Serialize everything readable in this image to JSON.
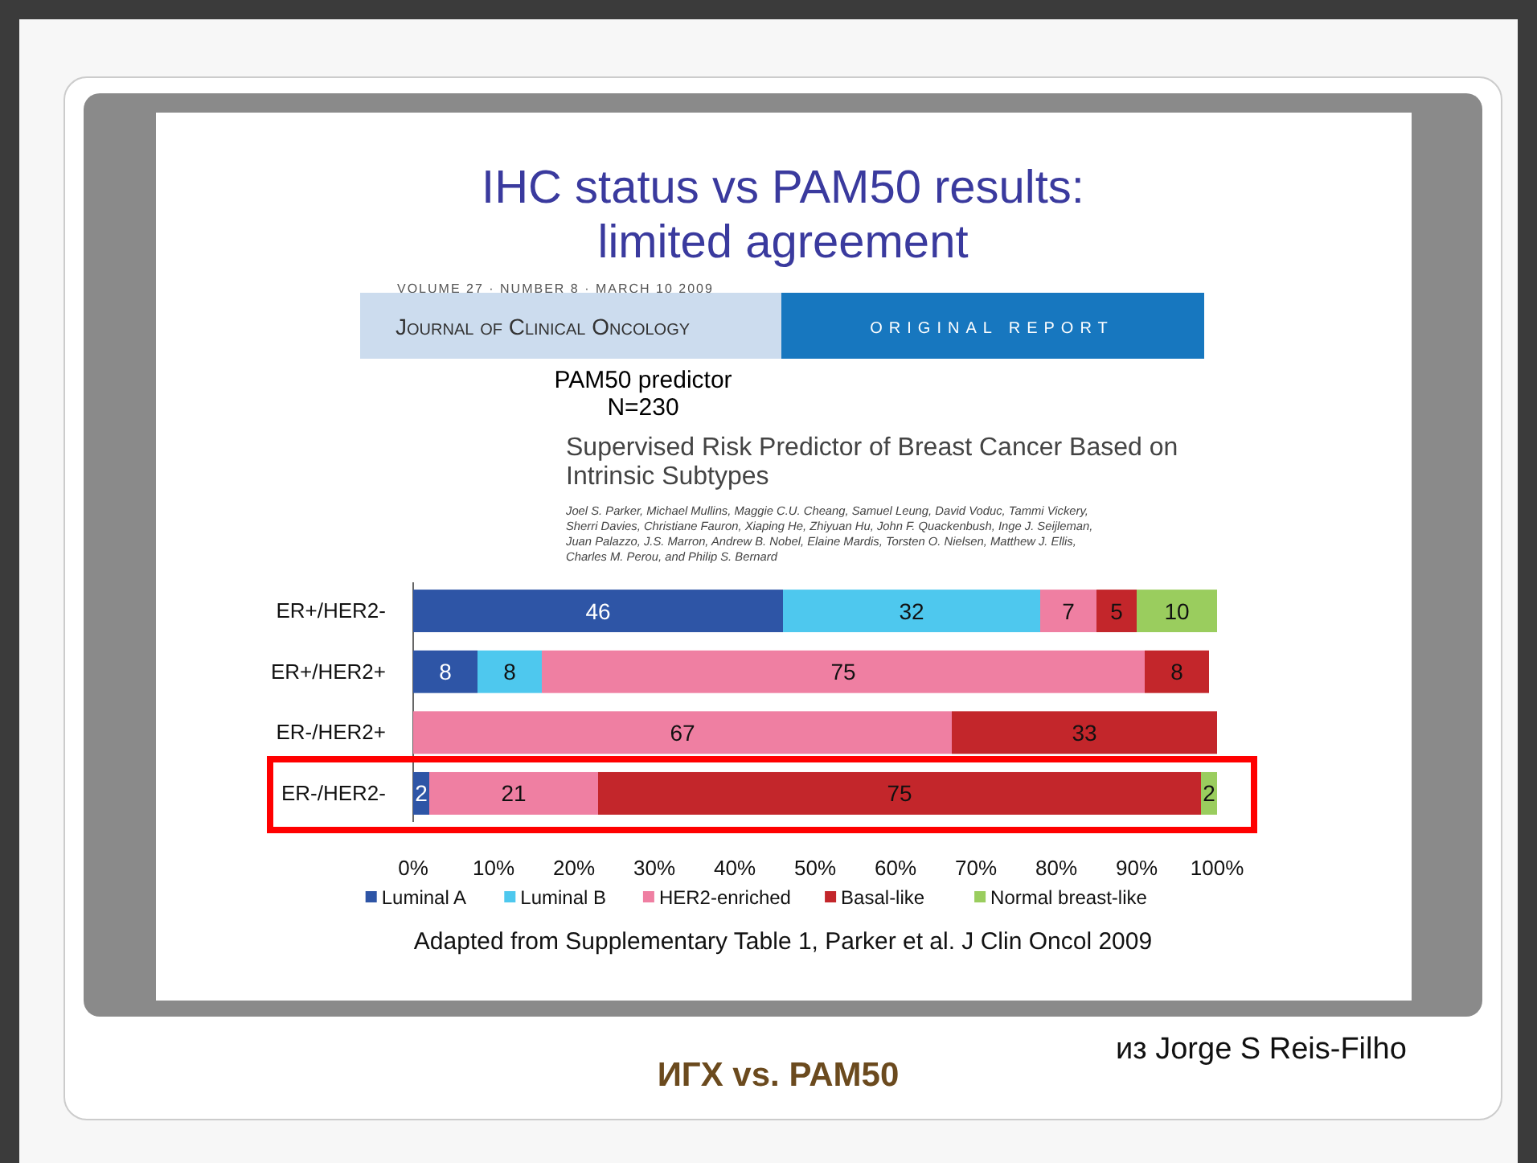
{
  "chart_data": {
    "type": "bar",
    "orientation": "horizontal",
    "stacked": true,
    "title": "IHC status vs PAM50 results:\nlimited agreement",
    "subtitle": "PAM50 predictor\nN=230",
    "categories": [
      "ER+/HER2-",
      "ER+/HER2+",
      "ER-/HER2+",
      "ER-/HER2-"
    ],
    "series": [
      {
        "name": "Luminal A",
        "color": "#2e55a6",
        "values": [
          46,
          8,
          null,
          2
        ]
      },
      {
        "name": "Luminal B",
        "color": "#4ec8ee",
        "values": [
          32,
          8,
          null,
          null
        ]
      },
      {
        "name": "HER2-enriched",
        "color": "#ef7fa2",
        "values": [
          7,
          75,
          67,
          21
        ]
      },
      {
        "name": "Basal-like",
        "color": "#c3262b",
        "values": [
          5,
          8,
          33,
          75
        ]
      },
      {
        "name": "Normal breast-like",
        "color": "#9acd5e",
        "values": [
          10,
          null,
          null,
          2
        ]
      }
    ],
    "xlim": [
      0,
      100
    ],
    "xticks": [
      {
        "value": 0,
        "label": "0%"
      },
      {
        "value": 10,
        "label": "10%"
      },
      {
        "value": 20,
        "label": "20%"
      },
      {
        "value": 30,
        "label": "30%"
      },
      {
        "value": 40,
        "label": "40%"
      },
      {
        "value": 50,
        "label": "50%"
      },
      {
        "value": 60,
        "label": "60%"
      },
      {
        "value": 70,
        "label": "70%"
      },
      {
        "value": 80,
        "label": "80%"
      },
      {
        "value": 90,
        "label": "90%"
      },
      {
        "value": 100,
        "label": "100%"
      }
    ],
    "data_labels": true,
    "grid": false,
    "legend": "bottom",
    "annotations": [
      "VOLUME 27 · NUMBER 8 · MARCH 10 2009",
      "Journal of Clinical Oncology",
      "ORIGINAL REPORT",
      "Supervised Risk Predictor of Breast Cancer Based on\nIntrinsic Subtypes",
      "Joel S. Parker, Michael Mullins, Maggie C.U. Cheang, Samuel Leung, David Voduc, Tammi Vickery,\nSherri Davies, Christiane Fauron, Xiaping He, Zhiyuan Hu, John F. Quackenbush, Inge J. Seijleman,\nJuan Palazzo, J.S. Marron, Andrew B. Nobel, Elaine Mardis, Torsten O. Nielsen, Matthew J. Ellis,\nCharles M. Perou, and Philip S. Bernard",
      "Adapted from Supplementary Table 1, Parker et al. J Clin Oncol 2009",
      "из Jorge S Reis-Filho",
      "ИГХ vs. PAM50"
    ]
  }
}
